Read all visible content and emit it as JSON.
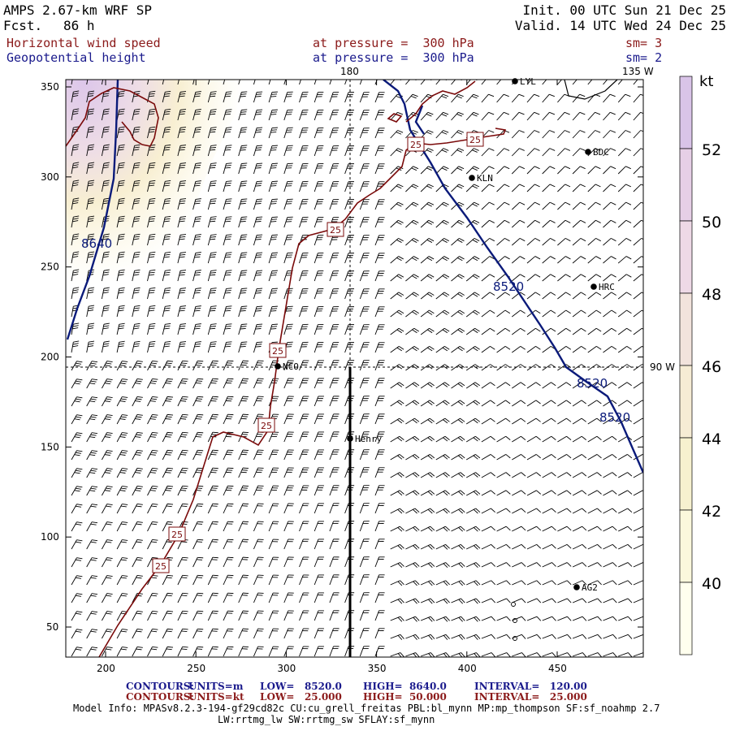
{
  "header": {
    "model": "AMPS 2.67-km WRF SP",
    "fcst_label": "Fcst.",
    "fcst_value": "86 h",
    "init": "Init. 00 UTC Sun 21 Dec 25",
    "valid": "Valid. 14 UTC Wed 24 Dec 25",
    "field1": "Horizontal wind speed",
    "field1_level": "at pressure =  300 hPa",
    "field1_sm": "sm= 3",
    "field2": "Geopotential height",
    "field2_level": "at pressure =  300 hPa",
    "field2_sm": "sm= 2"
  },
  "map": {
    "xticks": [
      "200",
      "250",
      "300",
      "350",
      "400",
      "450"
    ],
    "yticks": [
      "50",
      "100",
      "150",
      "200",
      "250",
      "300",
      "350"
    ],
    "meridian_labels": [
      "180",
      "135 W",
      "90 W"
    ],
    "stations": [
      "LYL",
      "BDC",
      "KLN",
      "HRC",
      "NCO",
      "Henry",
      "AG2"
    ],
    "height_contour_labels": [
      "8640",
      "8520",
      "8520",
      "8520"
    ],
    "speed_contour_labels": [
      "25",
      "25",
      "25",
      "25",
      "25",
      "25",
      "25",
      "25"
    ],
    "colors": {
      "height_contour": "#0a1a7a",
      "speed_contour": "#7a0a0a"
    }
  },
  "colorbar": {
    "unit": "kt",
    "labels": [
      "52",
      "50",
      "48",
      "46",
      "44",
      "42",
      "40"
    ],
    "colors": [
      "#e6cfe6",
      "#eed9e6",
      "#f2e3dc",
      "#f6ecd4",
      "#f7f1cf",
      "#fbf8dc",
      "#ffffee"
    ]
  },
  "footer": {
    "row1_type": "CONTOURS:",
    "row1_units": "UNITS=m",
    "row1_low": "LOW=   8520.0",
    "row1_high": "HIGH=  8640.0",
    "row1_interval": "INTERVAL=   120.00",
    "row2_type": "CONTOURS:",
    "row2_units": "UNITS=kt",
    "row2_low": "LOW=   25.000",
    "row2_high": "HIGH=  50.000",
    "row2_interval": "INTERVAL=   25.000",
    "model_info": "Model Info: MPASv8.2.3-194-gf29cd82c CU:cu_grell_freitas PBL:bl_mynn MP:mp_thompson SF:sf_noahmp 2.7",
    "model_info2": "LW:rrtmg_lw SW:rrtmg_sw SFLAY:sf_mynn"
  }
}
